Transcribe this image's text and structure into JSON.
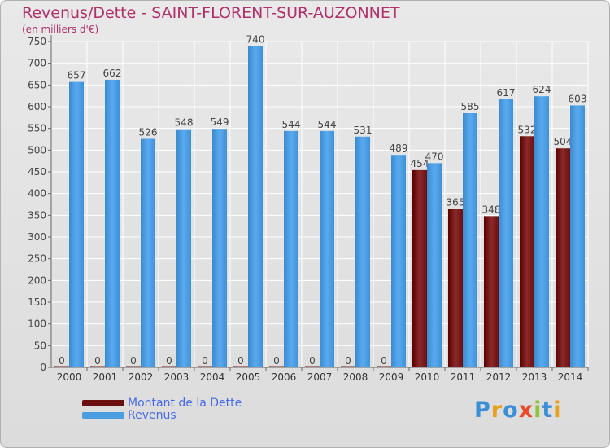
{
  "title": "Revenus/Dette - SAINT-FLORENT-SUR-AUZONNET",
  "subtitle": "(en milliers d'€)",
  "logo": "Proxiti",
  "colors": {
    "dette": "#6b0f0f",
    "revenus": "#4a9ee0",
    "title": "#b0306b",
    "legend_text": "#4a6ae8"
  },
  "legend": {
    "dette_label": "Montant de la Dette",
    "revenus_label": "Revenus"
  },
  "chart_data": {
    "type": "bar",
    "categories": [
      "2000",
      "2001",
      "2002",
      "2003",
      "2004",
      "2005",
      "2006",
      "2007",
      "2008",
      "2009",
      "2010",
      "2011",
      "2012",
      "2013",
      "2014"
    ],
    "series": [
      {
        "name": "Montant de la Dette",
        "values": [
          0,
          0,
          0,
          0,
          0,
          0,
          0,
          0,
          0,
          0,
          454,
          365,
          348,
          532,
          504
        ]
      },
      {
        "name": "Revenus",
        "values": [
          657,
          662,
          526,
          548,
          549,
          740,
          544,
          544,
          531,
          489,
          470,
          585,
          617,
          624,
          603
        ]
      }
    ],
    "ylim": [
      0,
      750
    ],
    "yticks": [
      0,
      50,
      100,
      150,
      200,
      250,
      300,
      350,
      400,
      450,
      500,
      550,
      600,
      650,
      700,
      750
    ],
    "grid": true,
    "legend_position": "bottom-left"
  }
}
